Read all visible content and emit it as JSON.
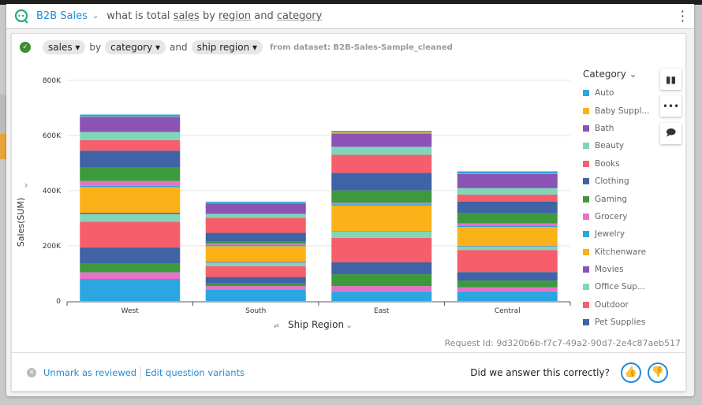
{
  "header": {
    "brand": "B2B Sales",
    "question_prefix": "what is total ",
    "q_sales": "sales",
    "q_by": " by ",
    "q_region": "region",
    "q_and": " and ",
    "q_category": "category"
  },
  "interpretation": {
    "measure": "sales",
    "by": "by",
    "group1": "category",
    "and": "and",
    "group2": "ship region",
    "source": "from dataset: B2B-Sales-Sample_cleaned"
  },
  "legend": {
    "title": "Category",
    "items": [
      {
        "label": "Auto",
        "color": "#2ca6e0"
      },
      {
        "label": "Baby Suppl...",
        "color": "#fab218"
      },
      {
        "label": "Bath",
        "color": "#8b53b4"
      },
      {
        "label": "Beauty",
        "color": "#7fd6b9"
      },
      {
        "label": "Books",
        "color": "#f55e6a"
      },
      {
        "label": "Clothing",
        "color": "#3f63a4"
      },
      {
        "label": "Gaming",
        "color": "#3d993d"
      },
      {
        "label": "Grocery",
        "color": "#e871c8"
      },
      {
        "label": "Jewelry",
        "color": "#2ca6e0"
      },
      {
        "label": "Kitchenware",
        "color": "#fab218"
      },
      {
        "label": "Movies",
        "color": "#8b53b4"
      },
      {
        "label": "Office Sup...",
        "color": "#7fd6b9"
      },
      {
        "label": "Outdoor",
        "color": "#f55e6a"
      },
      {
        "label": "Pet Supplies",
        "color": "#3f63a4"
      }
    ]
  },
  "chart_data": {
    "type": "bar",
    "stacked": true,
    "xlabel": "Ship Region",
    "ylabel": "Sales(SUM)",
    "ylim": [
      0,
      800000
    ],
    "yticks": [
      "0",
      "200K",
      "400K",
      "600K",
      "800K"
    ],
    "categories": [
      "West",
      "South",
      "East",
      "Central"
    ],
    "grid": true,
    "legend_position": "right",
    "series_bottom_to_top": [
      {
        "color": "#2ca6e0",
        "values": [
          80000,
          40000,
          35000,
          35000
        ]
      },
      {
        "color": "#e871c8",
        "values": [
          24000,
          14000,
          19000,
          15000
        ]
      },
      {
        "color": "#3d993d",
        "values": [
          32000,
          10000,
          43000,
          24000
        ]
      },
      {
        "name": "Pet Supplies",
        "color": "#3f63a4",
        "values": [
          58000,
          23000,
          43000,
          31000
        ]
      },
      {
        "name": "Outdoor",
        "color": "#f55e6a",
        "values": [
          93000,
          39000,
          89000,
          80000
        ]
      },
      {
        "name": "Office Supplies",
        "color": "#7fd6b9",
        "values": [
          28000,
          13000,
          24000,
          14000
        ]
      },
      {
        "name": "Movies",
        "color": "#8b53b4",
        "values": [
          5000,
          3000,
          1000,
          1000
        ]
      },
      {
        "name": "Kitchenware",
        "color": "#fab218",
        "values": [
          93000,
          57000,
          92000,
          68000
        ]
      },
      {
        "name": "Jewelry",
        "color": "#2ca6e0",
        "values": [
          5000,
          5000,
          5000,
          5000
        ]
      },
      {
        "name": "Grocery",
        "color": "#e871c8",
        "values": [
          17000,
          4000,
          5000,
          8000
        ]
      },
      {
        "name": "Gaming",
        "color": "#3d993d",
        "values": [
          49000,
          8000,
          45000,
          37000
        ]
      },
      {
        "name": "Clothing",
        "color": "#3f63a4",
        "values": [
          61000,
          31000,
          64000,
          43000
        ]
      },
      {
        "name": "Books",
        "color": "#f55e6a",
        "values": [
          38000,
          55000,
          65000,
          25000
        ]
      },
      {
        "name": "Beauty",
        "color": "#7fd6b9",
        "values": [
          30000,
          14000,
          29000,
          23000
        ]
      },
      {
        "name": "Bath",
        "color": "#8b53b4",
        "values": [
          55000,
          38000,
          48000,
          52000
        ]
      },
      {
        "name": "Baby Supplies",
        "color": "#fab218",
        "values": [
          1000,
          1000,
          5000,
          1000
        ]
      },
      {
        "name": "Auto",
        "color": "#2ca6e0",
        "values": [
          7000,
          5000,
          5000,
          8000
        ]
      }
    ]
  },
  "request_id": "Request Id: 9d320b6b-f7c7-49a2-90d7-2e4c87aeb517",
  "footer": {
    "unmark": "Unmark as reviewed",
    "edit": "Edit question variants",
    "ask": "Did we answer this correctly?"
  },
  "colors": {
    "accent": "#1f8dd6",
    "success": "#3d8c2e"
  }
}
